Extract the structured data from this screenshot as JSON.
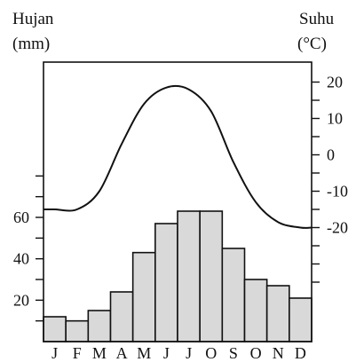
{
  "chart_data": {
    "type": "climograph",
    "left_axis": {
      "label_line1": "Hujan",
      "label_line2": "(mm)",
      "ticks": [
        20,
        40,
        60
      ],
      "range": [
        0,
        75
      ]
    },
    "right_axis": {
      "label_line1": "Suhu",
      "label_line2": "(°C)",
      "ticks": [
        20,
        10,
        0,
        -10,
        -20
      ],
      "range": [
        -35,
        27
      ]
    },
    "months": [
      "J",
      "F",
      "M",
      "A",
      "M",
      "J",
      "J",
      "O",
      "S",
      "O",
      "N",
      "D"
    ],
    "series": [
      {
        "type": "bar",
        "axis": "left",
        "color": "#d9d9d9",
        "values": [
          12,
          10,
          15,
          24,
          43,
          57,
          63,
          63,
          45,
          30,
          27,
          21
        ]
      },
      {
        "type": "line",
        "axis": "right",
        "color": "#111111",
        "values": [
          -15,
          -15,
          -10,
          3,
          14,
          18.5,
          18,
          12,
          -2,
          -13,
          -18.5,
          -20
        ]
      }
    ]
  }
}
